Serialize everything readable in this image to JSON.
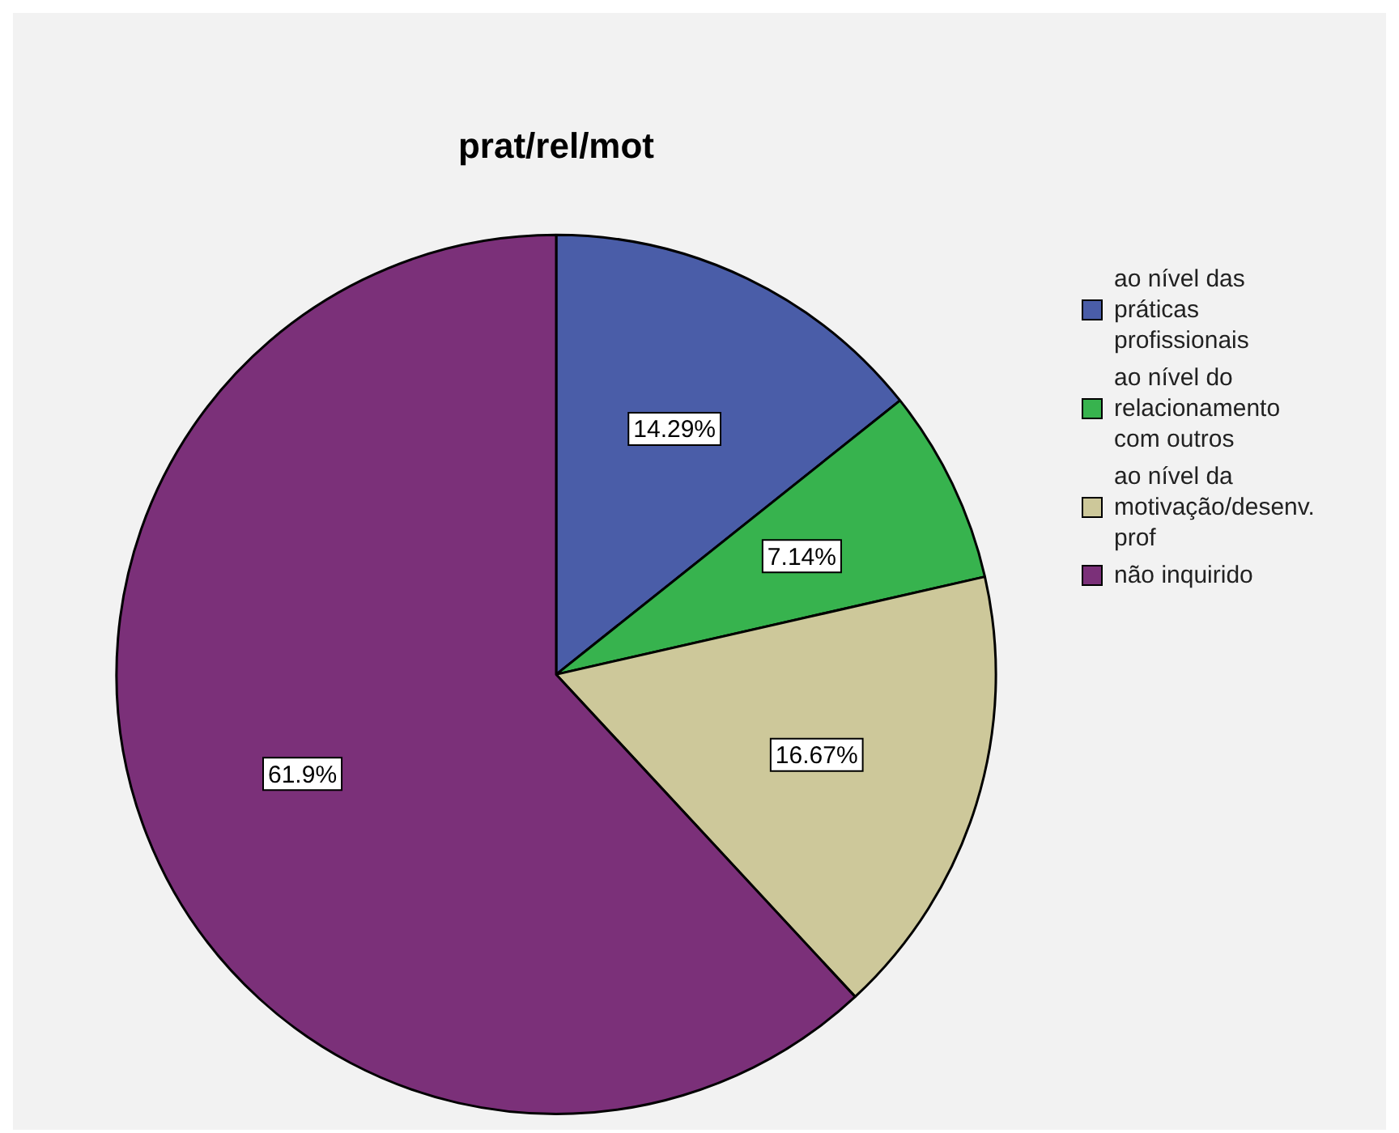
{
  "chart_data": {
    "type": "pie",
    "title": "prat/rel/mot",
    "categories": [
      "ao nível das práticas profissionais",
      "ao nível do relacionamento com outros",
      "ao nível da motivação/desenv. prof",
      "não inquirido"
    ],
    "values": [
      14.29,
      7.14,
      16.67,
      61.9
    ],
    "colors": [
      "#4a5da8",
      "#37b34e",
      "#cdc89a",
      "#7b3079"
    ],
    "value_labels": [
      "14.29%",
      "7.14%",
      "16.67%",
      "61.9%"
    ],
    "legend": "right"
  }
}
